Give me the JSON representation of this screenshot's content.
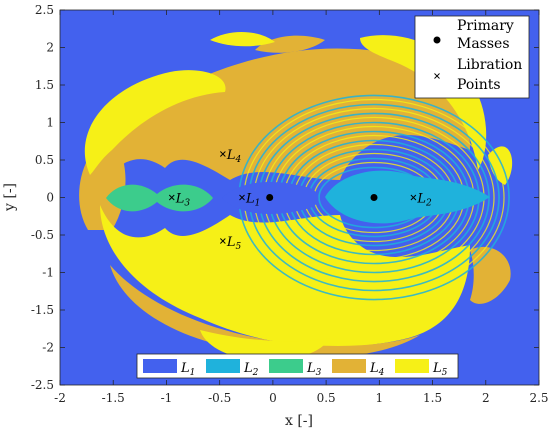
{
  "chart_data": {
    "type": "heatmap",
    "title": "",
    "xlabel": "x [-]",
    "ylabel": "y [-]",
    "xlim": [
      -2,
      2.5
    ],
    "ylim": [
      -2.5,
      2.5
    ],
    "xticks": [
      "-2",
      "-1.5",
      "-1",
      "-0.5",
      "0",
      "0.5",
      "1",
      "1.5",
      "2",
      "2.5"
    ],
    "yticks": [
      "-2.5",
      "-2",
      "-1.5",
      "-1",
      "-0.5",
      "0",
      "0.5",
      "1",
      "1.5",
      "2",
      "2.5"
    ],
    "grid": false,
    "background_class": "L1",
    "classes": [
      {
        "key": "L1",
        "base": "L",
        "sub": "1",
        "color": "#4361ee"
      },
      {
        "key": "L2",
        "base": "L",
        "sub": "2",
        "color": "#1fb2dc"
      },
      {
        "key": "L3",
        "base": "L",
        "sub": "3",
        "color": "#3ccc8c"
      },
      {
        "key": "L4",
        "base": "L",
        "sub": "4",
        "color": "#e2b236"
      },
      {
        "key": "L5",
        "base": "L",
        "sub": "5",
        "color": "#f6f017"
      }
    ],
    "primary_masses": [
      {
        "x": -0.03,
        "y": 0.0
      },
      {
        "x": 0.95,
        "y": 0.0
      }
    ],
    "libration_points": [
      {
        "label_base": "L",
        "label_sub": "1",
        "x": -0.29,
        "y": 0.0
      },
      {
        "label_base": "L",
        "label_sub": "2",
        "x": 1.32,
        "y": 0.0
      },
      {
        "label_base": "L",
        "label_sub": "3",
        "x": -0.95,
        "y": 0.0
      },
      {
        "label_base": "L",
        "label_sub": "4",
        "x": -0.47,
        "y": 0.58
      },
      {
        "label_base": "L",
        "label_sub": "5",
        "x": -0.47,
        "y": -0.58
      }
    ],
    "legend_top": {
      "placement": "top-right",
      "entries": [
        {
          "label": "Primary Masses",
          "line1": "Primary",
          "line2": "Masses",
          "marker": "dot"
        },
        {
          "label": "Libration Points",
          "line1": "Libration",
          "line2": "Points",
          "marker": "cross"
        }
      ]
    },
    "legend_bottom": {
      "placement": "bottom-center",
      "orientation": "horizontal"
    }
  }
}
